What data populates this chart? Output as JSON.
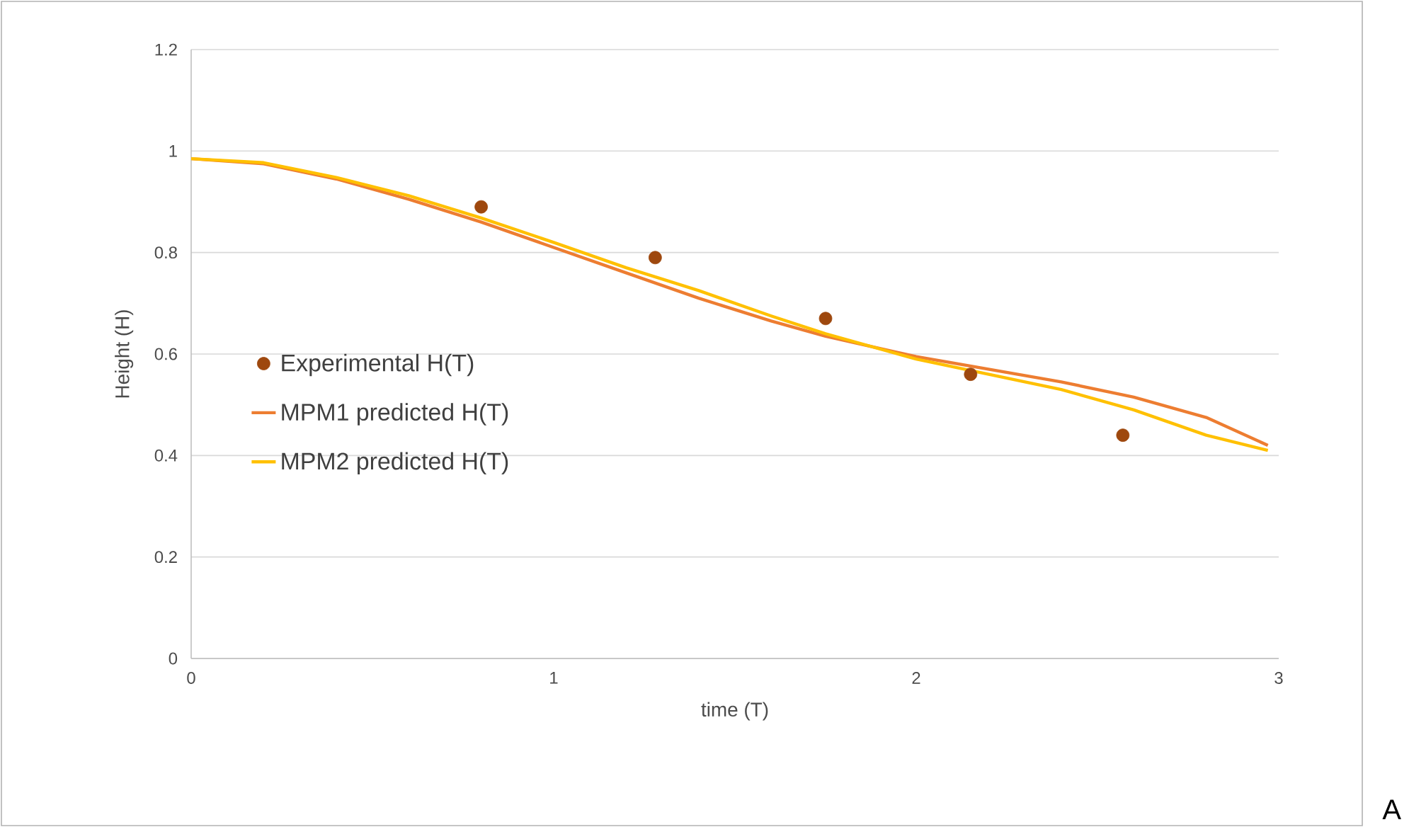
{
  "chart_data": {
    "type": "line",
    "xlabel": "time (T)",
    "ylabel": "Height (H)",
    "xlim": [
      0,
      3
    ],
    "xticks": [
      0,
      1,
      2,
      3
    ],
    "ylim": [
      0,
      1.2
    ],
    "yticks": [
      0,
      0.2,
      0.4,
      0.6,
      0.8,
      1,
      1.2
    ],
    "grid": "y",
    "legend": "left",
    "annotations": [
      "A"
    ],
    "series": [
      {
        "name": "Experimental H(T)",
        "type": "scatter",
        "marker": "circle",
        "color": "#9e480e",
        "x": [
          0.8,
          1.28,
          1.75,
          2.15,
          2.57
        ],
        "values": [
          0.89,
          0.79,
          0.67,
          0.56,
          0.44
        ]
      },
      {
        "name": "MPM1 predicted H(T)",
        "marker": "none",
        "color": "#ed7d31",
        "x": [
          0,
          0.2,
          0.4,
          0.6,
          0.8,
          1.0,
          1.2,
          1.4,
          1.6,
          1.75,
          2.0,
          2.2,
          2.4,
          2.6,
          2.8,
          2.97
        ],
        "values": [
          0.985,
          0.975,
          0.945,
          0.905,
          0.86,
          0.81,
          0.76,
          0.71,
          0.665,
          0.635,
          0.595,
          0.57,
          0.545,
          0.515,
          0.475,
          0.42
        ]
      },
      {
        "name": "MPM2 predicted H(T)",
        "marker": "none",
        "color": "#ffc000",
        "x": [
          0,
          0.2,
          0.4,
          0.6,
          0.8,
          1.0,
          1.2,
          1.4,
          1.6,
          1.75,
          2.0,
          2.2,
          2.4,
          2.6,
          2.8,
          2.97
        ],
        "values": [
          0.985,
          0.977,
          0.948,
          0.912,
          0.868,
          0.82,
          0.77,
          0.725,
          0.675,
          0.64,
          0.59,
          0.56,
          0.53,
          0.49,
          0.44,
          0.41
        ]
      }
    ]
  }
}
